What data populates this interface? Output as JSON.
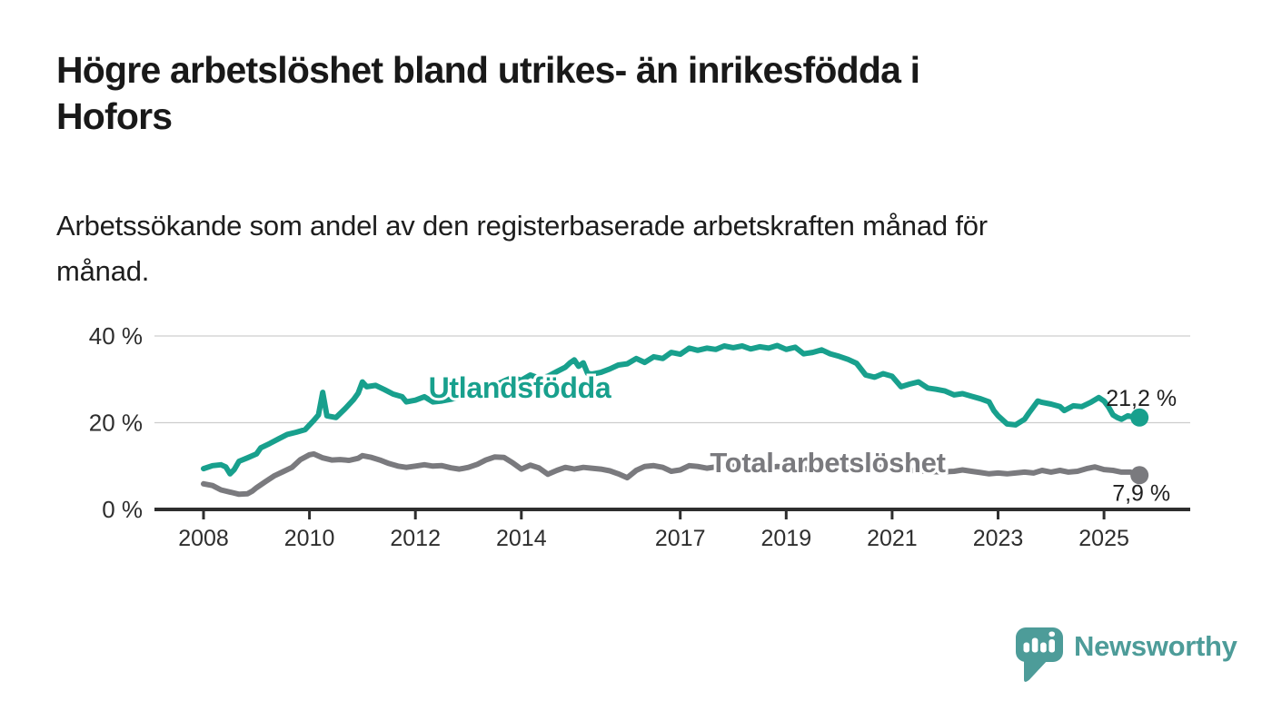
{
  "header": {
    "title": "Högre arbetslöshet bland utrikes- än inrikesfödda i\nHofors",
    "subtitle": "Arbetssökande som andel av den registerbaserade arbetskraften månad för\nmånad."
  },
  "footer": {
    "brand": "Newsworthy"
  },
  "colors": {
    "accent_teal": "#18a08d",
    "series_gray": "#7a7a7e",
    "logo_teal": "#4d9c99",
    "text_dark": "#191919",
    "axis_dark": "#2e2e2e",
    "grid_light": "#cdcdcd"
  },
  "chart_data": {
    "type": "line",
    "title": "Högre arbetslöshet bland utrikes- än inrikesfödda i Hofors",
    "subtitle": "Arbetssökande som andel av den registerbaserade arbetskraften månad för månad.",
    "xlabel": "",
    "ylabel": "",
    "y_unit": "%",
    "x_unit": "year",
    "ylim": [
      0,
      43
    ],
    "xlim": [
      2007.1,
      2026.6
    ],
    "grid": "horizontal gridlines at 20 and 40",
    "legend": "inline labels on lines",
    "y_ticks": [
      {
        "value": 0,
        "label": "0 %"
      },
      {
        "value": 20,
        "label": "20 %"
      },
      {
        "value": 40,
        "label": "40 %"
      }
    ],
    "x_ticks": [
      {
        "value": 2008,
        "label": "2008"
      },
      {
        "value": 2010,
        "label": "2010"
      },
      {
        "value": 2012,
        "label": "2012"
      },
      {
        "value": 2014,
        "label": "2014"
      },
      {
        "value": 2017,
        "label": "2017"
      },
      {
        "value": 2019,
        "label": "2019"
      },
      {
        "value": 2021,
        "label": "2021"
      },
      {
        "value": 2023,
        "label": "2023"
      },
      {
        "value": 2025,
        "label": "2025"
      }
    ],
    "series": [
      {
        "name": "Utlandsfödda",
        "color": "#18a08d",
        "end_value": 21.2,
        "end_label": "21,2 %",
        "points": [
          [
            2008.0,
            9.4
          ],
          [
            2008.17,
            10.1
          ],
          [
            2008.33,
            10.3
          ],
          [
            2008.42,
            9.8
          ],
          [
            2008.5,
            8.2
          ],
          [
            2008.58,
            9.2
          ],
          [
            2008.67,
            11.1
          ],
          [
            2008.83,
            11.9
          ],
          [
            2009.0,
            12.8
          ],
          [
            2009.08,
            14.2
          ],
          [
            2009.25,
            15.2
          ],
          [
            2009.42,
            16.3
          ],
          [
            2009.58,
            17.3
          ],
          [
            2009.75,
            17.8
          ],
          [
            2009.92,
            18.4
          ],
          [
            2010.08,
            20.5
          ],
          [
            2010.17,
            21.8
          ],
          [
            2010.25,
            27.0
          ],
          [
            2010.33,
            21.6
          ],
          [
            2010.5,
            21.2
          ],
          [
            2010.67,
            23.2
          ],
          [
            2010.83,
            25.3
          ],
          [
            2010.92,
            26.8
          ],
          [
            2011.0,
            29.4
          ],
          [
            2011.08,
            28.3
          ],
          [
            2011.25,
            28.6
          ],
          [
            2011.42,
            27.6
          ],
          [
            2011.58,
            26.6
          ],
          [
            2011.75,
            26.0
          ],
          [
            2011.83,
            24.8
          ],
          [
            2012.0,
            25.2
          ],
          [
            2012.17,
            26.0
          ],
          [
            2012.33,
            24.8
          ],
          [
            2012.5,
            25.0
          ],
          [
            2012.67,
            25.4
          ],
          [
            2012.83,
            26.0
          ],
          [
            2013.0,
            27.2
          ],
          [
            2013.17,
            28.2
          ],
          [
            2013.33,
            29.2
          ],
          [
            2013.5,
            28.6
          ],
          [
            2013.67,
            29.6
          ],
          [
            2013.83,
            30.4
          ],
          [
            2014.0,
            29.8
          ],
          [
            2014.17,
            31.0
          ],
          [
            2014.33,
            30.3
          ],
          [
            2014.5,
            30.7
          ],
          [
            2014.67,
            31.8
          ],
          [
            2014.83,
            32.8
          ],
          [
            2014.92,
            33.8
          ],
          [
            2015.0,
            34.5
          ],
          [
            2015.08,
            33.0
          ],
          [
            2015.17,
            33.8
          ],
          [
            2015.25,
            31.4
          ],
          [
            2015.33,
            31.2
          ],
          [
            2015.5,
            31.6
          ],
          [
            2015.67,
            32.4
          ],
          [
            2015.83,
            33.3
          ],
          [
            2016.0,
            33.6
          ],
          [
            2016.17,
            34.8
          ],
          [
            2016.33,
            33.9
          ],
          [
            2016.5,
            35.2
          ],
          [
            2016.67,
            34.8
          ],
          [
            2016.83,
            36.2
          ],
          [
            2017.0,
            35.8
          ],
          [
            2017.17,
            37.2
          ],
          [
            2017.33,
            36.7
          ],
          [
            2017.5,
            37.2
          ],
          [
            2017.67,
            36.9
          ],
          [
            2017.83,
            37.7
          ],
          [
            2018.0,
            37.3
          ],
          [
            2018.17,
            37.7
          ],
          [
            2018.33,
            37.0
          ],
          [
            2018.5,
            37.5
          ],
          [
            2018.67,
            37.2
          ],
          [
            2018.83,
            37.8
          ],
          [
            2019.0,
            36.9
          ],
          [
            2019.17,
            37.4
          ],
          [
            2019.33,
            35.9
          ],
          [
            2019.5,
            36.2
          ],
          [
            2019.67,
            36.8
          ],
          [
            2019.83,
            35.9
          ],
          [
            2020.0,
            35.3
          ],
          [
            2020.17,
            34.6
          ],
          [
            2020.33,
            33.7
          ],
          [
            2020.5,
            31.0
          ],
          [
            2020.67,
            30.5
          ],
          [
            2020.83,
            31.3
          ],
          [
            2021.0,
            30.7
          ],
          [
            2021.17,
            28.3
          ],
          [
            2021.33,
            28.9
          ],
          [
            2021.5,
            29.4
          ],
          [
            2021.67,
            28.0
          ],
          [
            2021.83,
            27.7
          ],
          [
            2022.0,
            27.3
          ],
          [
            2022.17,
            26.4
          ],
          [
            2022.33,
            26.7
          ],
          [
            2022.5,
            26.1
          ],
          [
            2022.67,
            25.5
          ],
          [
            2022.83,
            24.8
          ],
          [
            2022.92,
            22.8
          ],
          [
            2023.0,
            21.6
          ],
          [
            2023.17,
            19.7
          ],
          [
            2023.33,
            19.5
          ],
          [
            2023.5,
            20.8
          ],
          [
            2023.58,
            22.2
          ],
          [
            2023.75,
            25.0
          ],
          [
            2023.83,
            24.7
          ],
          [
            2024.0,
            24.3
          ],
          [
            2024.17,
            23.7
          ],
          [
            2024.25,
            22.8
          ],
          [
            2024.42,
            23.9
          ],
          [
            2024.58,
            23.7
          ],
          [
            2024.75,
            24.7
          ],
          [
            2024.9,
            25.8
          ],
          [
            2025.0,
            25.0
          ],
          [
            2025.08,
            23.7
          ],
          [
            2025.17,
            21.8
          ],
          [
            2025.25,
            21.2
          ],
          [
            2025.33,
            20.8
          ],
          [
            2025.45,
            21.6
          ],
          [
            2025.58,
            21.2
          ],
          [
            2025.67,
            21.2
          ]
        ]
      },
      {
        "name": "Total arbetslöshet",
        "color": "#7a7a7e",
        "end_value": 7.9,
        "end_label": "7,9 %",
        "points": [
          [
            2008.0,
            5.9
          ],
          [
            2008.17,
            5.5
          ],
          [
            2008.33,
            4.5
          ],
          [
            2008.5,
            4.0
          ],
          [
            2008.67,
            3.5
          ],
          [
            2008.83,
            3.6
          ],
          [
            2008.92,
            4.2
          ],
          [
            2009.0,
            5.0
          ],
          [
            2009.17,
            6.4
          ],
          [
            2009.33,
            7.7
          ],
          [
            2009.5,
            8.7
          ],
          [
            2009.67,
            9.7
          ],
          [
            2009.83,
            11.5
          ],
          [
            2010.0,
            12.6
          ],
          [
            2010.08,
            12.8
          ],
          [
            2010.25,
            11.9
          ],
          [
            2010.42,
            11.4
          ],
          [
            2010.58,
            11.5
          ],
          [
            2010.75,
            11.3
          ],
          [
            2010.92,
            11.8
          ],
          [
            2011.0,
            12.4
          ],
          [
            2011.17,
            12.0
          ],
          [
            2011.33,
            11.4
          ],
          [
            2011.5,
            10.6
          ],
          [
            2011.67,
            10.0
          ],
          [
            2011.83,
            9.7
          ],
          [
            2012.0,
            10.0
          ],
          [
            2012.17,
            10.3
          ],
          [
            2012.33,
            10.0
          ],
          [
            2012.5,
            10.1
          ],
          [
            2012.67,
            9.6
          ],
          [
            2012.83,
            9.3
          ],
          [
            2013.0,
            9.7
          ],
          [
            2013.17,
            10.4
          ],
          [
            2013.33,
            11.4
          ],
          [
            2013.5,
            12.1
          ],
          [
            2013.67,
            12.0
          ],
          [
            2013.83,
            10.8
          ],
          [
            2014.0,
            9.3
          ],
          [
            2014.17,
            10.2
          ],
          [
            2014.33,
            9.6
          ],
          [
            2014.5,
            8.1
          ],
          [
            2014.67,
            9.0
          ],
          [
            2014.83,
            9.7
          ],
          [
            2015.0,
            9.3
          ],
          [
            2015.17,
            9.7
          ],
          [
            2015.33,
            9.5
          ],
          [
            2015.5,
            9.3
          ],
          [
            2015.67,
            8.9
          ],
          [
            2015.83,
            8.2
          ],
          [
            2016.0,
            7.3
          ],
          [
            2016.17,
            9.0
          ],
          [
            2016.33,
            9.9
          ],
          [
            2016.5,
            10.1
          ],
          [
            2016.67,
            9.7
          ],
          [
            2016.83,
            8.8
          ],
          [
            2017.0,
            9.1
          ],
          [
            2017.17,
            10.1
          ],
          [
            2017.33,
            9.9
          ],
          [
            2017.5,
            9.5
          ],
          [
            2017.67,
            9.8
          ],
          [
            2017.83,
            10.2
          ],
          [
            2018.0,
            9.9
          ],
          [
            2018.17,
            10.3
          ],
          [
            2018.33,
            9.8
          ],
          [
            2018.5,
            9.4
          ],
          [
            2018.67,
            9.6
          ],
          [
            2018.83,
            9.9
          ],
          [
            2019.0,
            9.7
          ],
          [
            2019.17,
            9.9
          ],
          [
            2019.33,
            9.4
          ],
          [
            2019.5,
            9.2
          ],
          [
            2019.67,
            9.4
          ],
          [
            2019.83,
            9.6
          ],
          [
            2020.0,
            9.9
          ],
          [
            2020.17,
            10.4
          ],
          [
            2020.33,
            10.6
          ],
          [
            2020.5,
            10.3
          ],
          [
            2020.67,
            10.0
          ],
          [
            2020.83,
            9.7
          ],
          [
            2021.0,
            9.4
          ],
          [
            2021.17,
            9.2
          ],
          [
            2021.33,
            9.0
          ],
          [
            2021.5,
            8.9
          ],
          [
            2021.67,
            8.8
          ],
          [
            2021.83,
            8.7
          ],
          [
            2022.0,
            8.7
          ],
          [
            2022.17,
            8.8
          ],
          [
            2022.33,
            9.1
          ],
          [
            2022.5,
            8.8
          ],
          [
            2022.67,
            8.5
          ],
          [
            2022.83,
            8.2
          ],
          [
            2023.0,
            8.4
          ],
          [
            2023.17,
            8.2
          ],
          [
            2023.33,
            8.4
          ],
          [
            2023.5,
            8.6
          ],
          [
            2023.67,
            8.4
          ],
          [
            2023.83,
            9.0
          ],
          [
            2024.0,
            8.6
          ],
          [
            2024.17,
            9.0
          ],
          [
            2024.33,
            8.6
          ],
          [
            2024.5,
            8.8
          ],
          [
            2024.67,
            9.4
          ],
          [
            2024.83,
            9.8
          ],
          [
            2025.0,
            9.2
          ],
          [
            2025.17,
            9.0
          ],
          [
            2025.33,
            8.6
          ],
          [
            2025.5,
            8.6
          ],
          [
            2025.67,
            7.9
          ]
        ]
      }
    ]
  }
}
